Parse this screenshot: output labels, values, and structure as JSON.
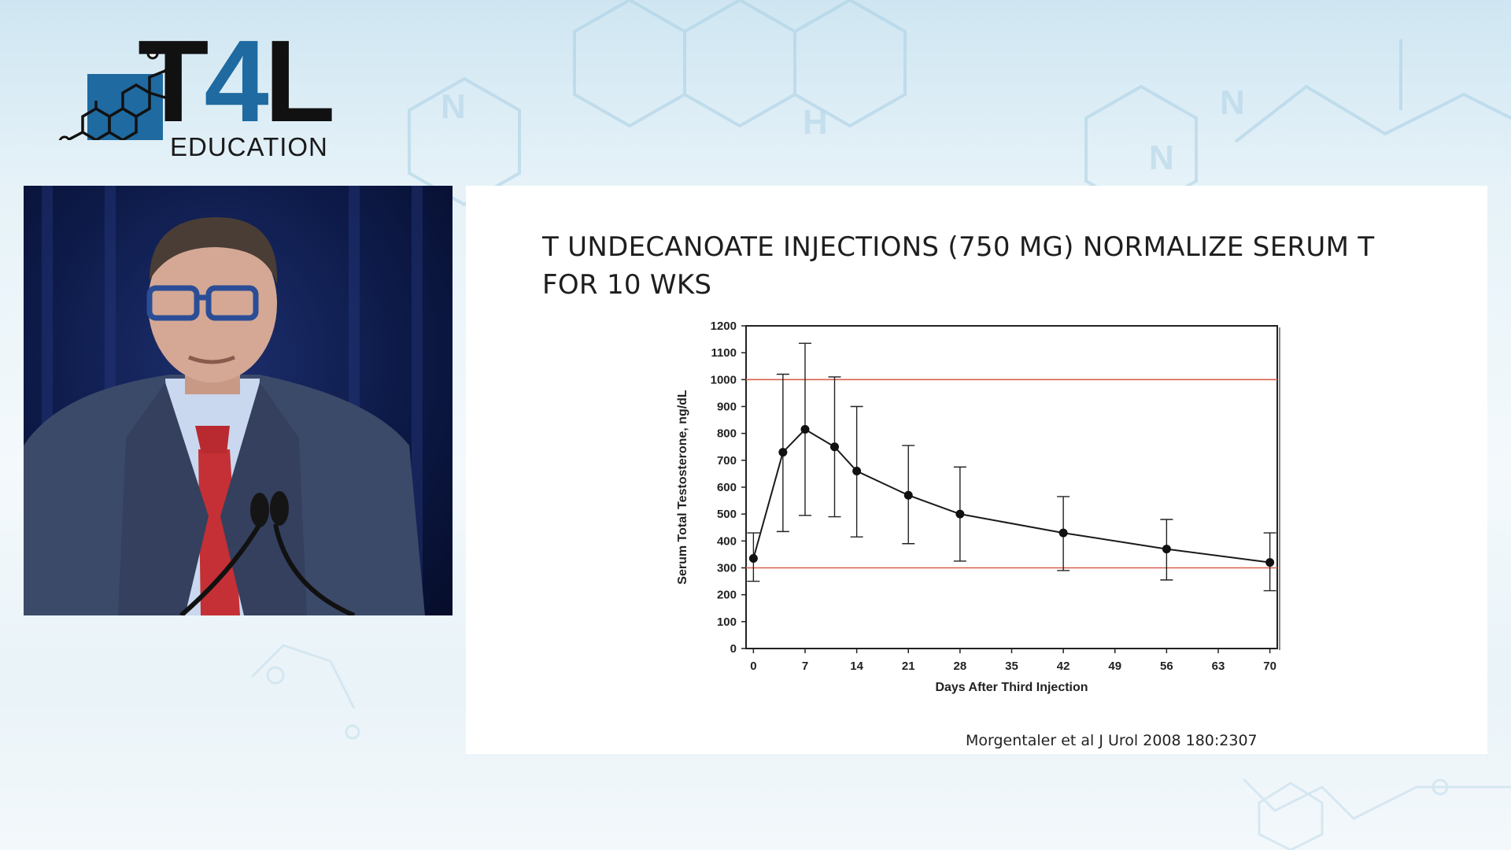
{
  "logo": {
    "brand_t": "T",
    "brand_4": "4",
    "brand_l": "L",
    "subtitle": "EDUCATION"
  },
  "slide": {
    "title": "T UNDECANOATE INJECTIONS (750 MG) NORMALIZE SERUM T FOR 10 WKS",
    "citation": "Morgentaler et al J Urol 2008 180:2307"
  },
  "colors": {
    "brand_blue": "#1f6aa0",
    "reference_line": "#d9604f",
    "data_line": "#1a1a1a"
  },
  "chart_data": {
    "type": "line",
    "title": "",
    "xlabel": "Days After Third Injection",
    "ylabel": "Serum Total Testosterone, ng/dL",
    "xlim": [
      -1,
      71
    ],
    "ylim": [
      0,
      1200
    ],
    "x_ticks": [
      0,
      7,
      14,
      21,
      28,
      35,
      42,
      49,
      56,
      63,
      70
    ],
    "y_ticks": [
      0,
      100,
      200,
      300,
      400,
      500,
      600,
      700,
      800,
      900,
      1000,
      1100,
      1200
    ],
    "grid": false,
    "reference_lines": [
      {
        "y": 1000,
        "color": "#d9604f"
      },
      {
        "y": 300,
        "color": "#d9604f"
      }
    ],
    "series": [
      {
        "x": [
          0,
          4,
          7,
          11,
          14,
          21,
          28,
          42,
          56,
          70
        ],
        "y": [
          335,
          730,
          815,
          750,
          660,
          570,
          500,
          430,
          370,
          320
        ],
        "err_low": [
          250,
          435,
          495,
          490,
          415,
          390,
          325,
          290,
          255,
          215
        ],
        "err_high": [
          430,
          1020,
          1135,
          1010,
          900,
          755,
          675,
          565,
          480,
          430
        ]
      }
    ]
  }
}
